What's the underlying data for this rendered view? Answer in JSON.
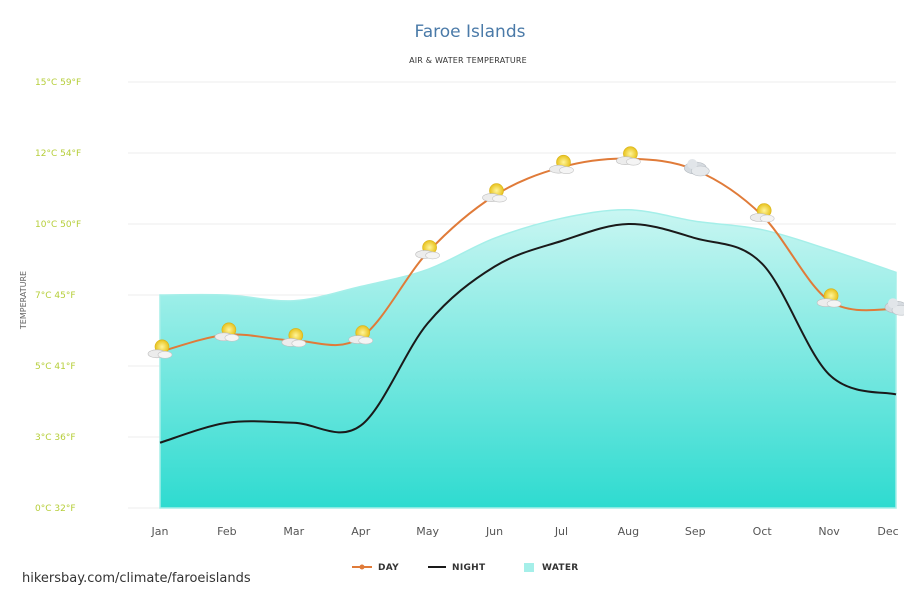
{
  "chart_data": {
    "type": "line",
    "title": "Faroe Islands",
    "subtitle": "AIR & WATER TEMPERATURE",
    "ylabel": "TEMPERATURE",
    "categories": [
      "Jan",
      "Feb",
      "Mar",
      "Apr",
      "May",
      "Jun",
      "Jul",
      "Aug",
      "Sep",
      "Oct",
      "Nov",
      "Dec"
    ],
    "y_ticks": [
      {
        "value": 0,
        "label": "0°C 32°F"
      },
      {
        "value": 2.5,
        "label": "3°C 36°F"
      },
      {
        "value": 5,
        "label": "5°C 41°F"
      },
      {
        "value": 7.5,
        "label": "7°C 45°F"
      },
      {
        "value": 10,
        "label": "10°C 50°F"
      },
      {
        "value": 12.5,
        "label": "12°C 54°F"
      },
      {
        "value": 15,
        "label": "15°C 59°F"
      }
    ],
    "ylim": [
      0,
      15
    ],
    "grid": true,
    "legend_position": "bottom",
    "series": [
      {
        "name": "DAY",
        "type": "line",
        "color": "#e07b39",
        "values": [
          5.5,
          6.1,
          5.9,
          6.0,
          9.0,
          11.0,
          12.0,
          12.3,
          11.9,
          10.3,
          7.3,
          7.0
        ]
      },
      {
        "name": "NIGHT",
        "type": "line",
        "color": "#1a1a1a",
        "values": [
          2.3,
          3.0,
          3.0,
          2.9,
          6.5,
          8.5,
          9.4,
          10.0,
          9.5,
          8.6,
          4.7,
          4.0
        ]
      },
      {
        "name": "WATER",
        "type": "area",
        "color": "#8fece6",
        "values": [
          7.5,
          7.5,
          7.3,
          7.8,
          8.4,
          9.5,
          10.2,
          10.5,
          10.1,
          9.8,
          9.1,
          8.3
        ]
      }
    ],
    "weather_icons": [
      "sun-cloud-icon",
      "sun-cloud-icon",
      "sun-cloud-icon",
      "sun-cloud-icon",
      "sun-cloud-icon",
      "sun-cloud-icon",
      "sun-cloud-icon",
      "sun-cloud-icon",
      "cloud-icon",
      "sun-cloud-icon",
      "sun-cloud-icon",
      "cloud-icon"
    ]
  },
  "source": "hikersbay.com/climate/faroeislands"
}
